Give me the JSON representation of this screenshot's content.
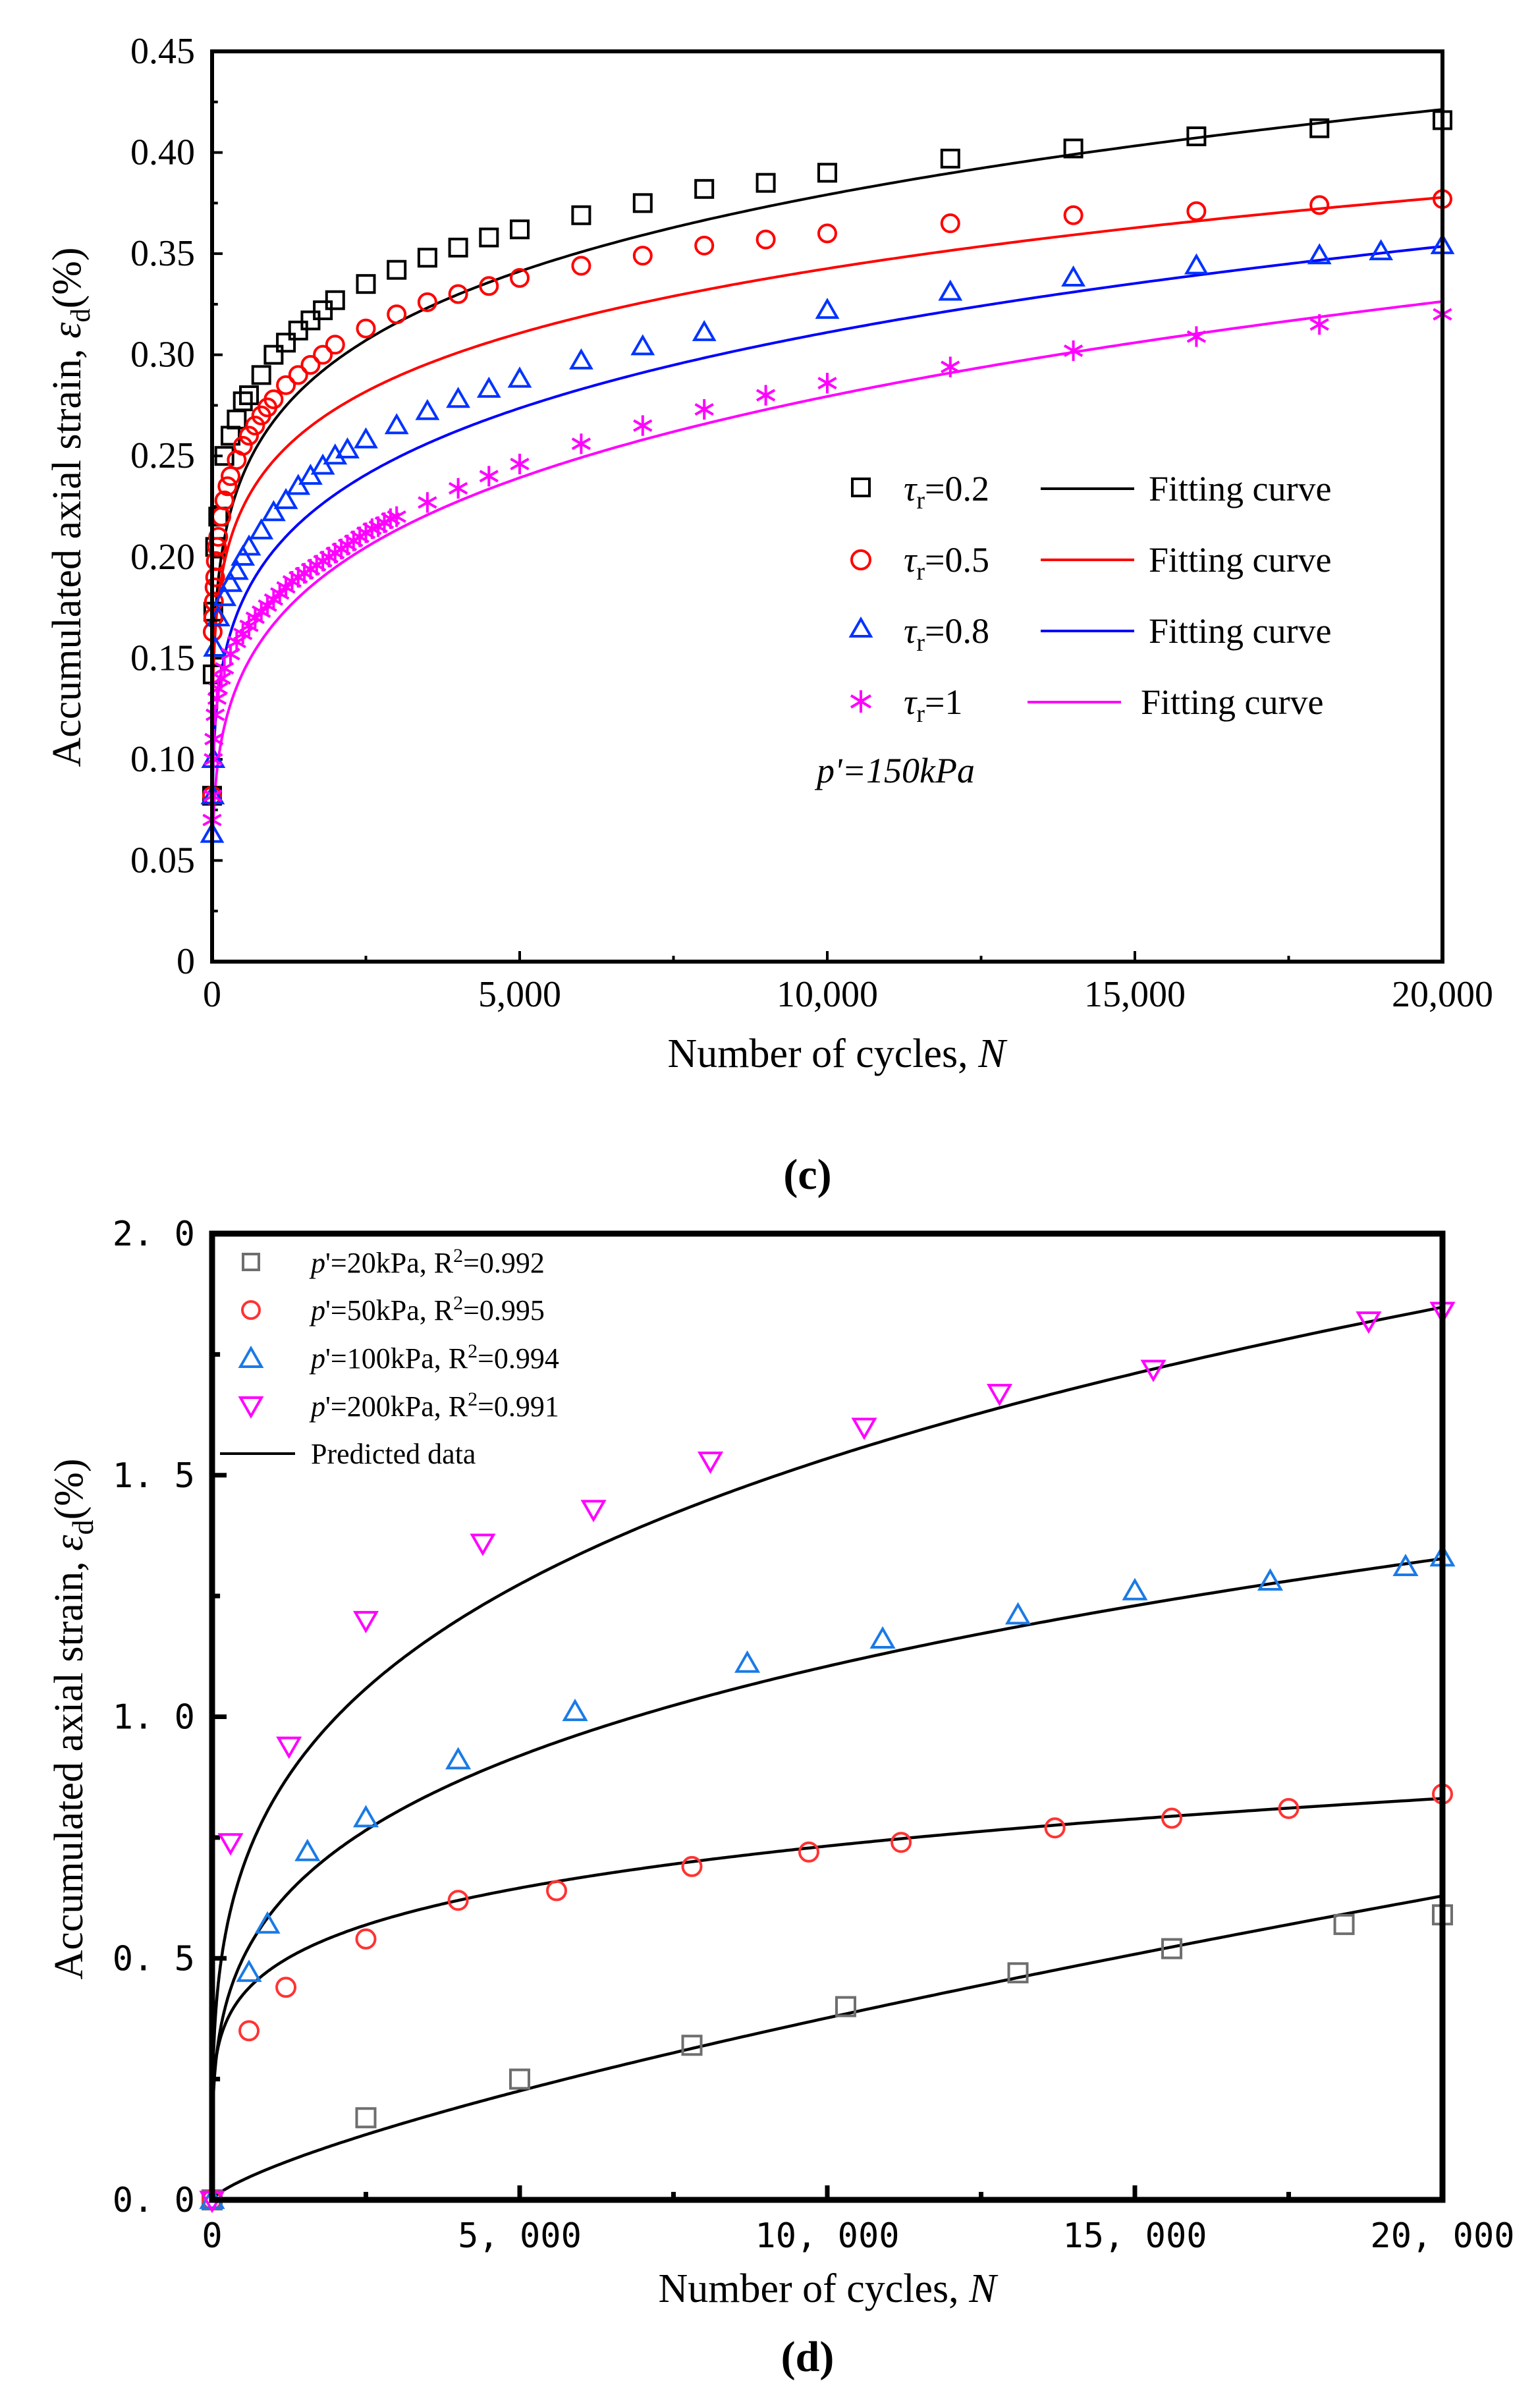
{
  "chart_data": [
    {
      "type": "scatter",
      "panel_label": "(c)",
      "xlabel_text": "Number of cycles, ",
      "xlabel_var": "N",
      "ylabel_text": "Accumulated axial strain, ",
      "ylabel_sym": "ε",
      "ylabel_sub": "d",
      "ylabel_unit": "(%)",
      "xlim": [
        0,
        20000
      ],
      "ylim": [
        0,
        0.45
      ],
      "xticks": [
        0,
        5000,
        10000,
        15000,
        20000
      ],
      "xtick_labels": [
        "0",
        "5,000",
        "10,000",
        "15,000",
        "20,000"
      ],
      "yticks": [
        0,
        0.05,
        0.1,
        0.15,
        0.2,
        0.25,
        0.3,
        0.35,
        0.4,
        0.45
      ],
      "ytick_labels": [
        "0",
        "0.05",
        "0.10",
        "0.15",
        "0.20",
        "0.25",
        "0.30",
        "0.35",
        "0.40",
        "0.45"
      ],
      "legend_position": "center-right",
      "annotation": "p'=150kPa",
      "series": [
        {
          "name": "τr=0.2",
          "tau_sym": "τ",
          "tau_sub": "r",
          "tau_val": "=0.2",
          "marker": "square",
          "color": "#000000",
          "fit_label": "Fitting curve",
          "fit_color": "#000000",
          "x": [
            0,
            10,
            20,
            50,
            100,
            200,
            300,
            400,
            500,
            600,
            800,
            1000,
            1200,
            1400,
            1600,
            1800,
            2000,
            2500,
            3000,
            3500,
            4000,
            4500,
            5000,
            6000,
            7000,
            8000,
            9000,
            10000,
            12000,
            14000,
            16000,
            18000,
            20000
          ],
          "y": [
            0.082,
            0.142,
            0.173,
            0.205,
            0.22,
            0.25,
            0.26,
            0.268,
            0.277,
            0.28,
            0.29,
            0.3,
            0.306,
            0.312,
            0.317,
            0.322,
            0.327,
            0.335,
            0.342,
            0.348,
            0.353,
            0.358,
            0.362,
            0.369,
            0.375,
            0.382,
            0.385,
            0.39,
            0.397,
            0.402,
            0.408,
            0.412,
            0.416
          ],
          "fit_a": 0.0935,
          "fit_b": 0.152
        },
        {
          "name": "τr=0.5",
          "tau_sym": "τ",
          "tau_sub": "r",
          "tau_val": "=0.5",
          "marker": "circle",
          "color": "#ff0000",
          "fit_label": "Fitting curve",
          "fit_color": "#ff0000",
          "x": [
            0,
            10,
            20,
            30,
            40,
            50,
            60,
            80,
            100,
            150,
            200,
            250,
            300,
            400,
            500,
            600,
            700,
            800,
            900,
            1000,
            1200,
            1400,
            1600,
            1800,
            2000,
            2500,
            3000,
            3500,
            4000,
            4500,
            5000,
            6000,
            7000,
            8000,
            9000,
            10000,
            12000,
            14000,
            16000,
            18000,
            20000
          ],
          "y": [
            0.082,
            0.163,
            0.17,
            0.178,
            0.185,
            0.19,
            0.198,
            0.205,
            0.21,
            0.22,
            0.228,
            0.235,
            0.24,
            0.248,
            0.255,
            0.26,
            0.265,
            0.27,
            0.274,
            0.278,
            0.285,
            0.29,
            0.295,
            0.3,
            0.305,
            0.313,
            0.32,
            0.326,
            0.33,
            0.334,
            0.338,
            0.344,
            0.349,
            0.354,
            0.357,
            0.36,
            0.365,
            0.369,
            0.371,
            0.374,
            0.377
          ],
          "fit_a": 0.0935,
          "fit_b": 0.141
        },
        {
          "name": "τr=0.8",
          "tau_sym": "τ",
          "tau_sub": "r",
          "tau_val": "=0.8",
          "marker": "triangle-up",
          "color": "#0033ff",
          "fit_label": "Fitting curve",
          "fit_color": "#0000ff",
          "x": [
            0,
            10,
            20,
            50,
            100,
            200,
            300,
            400,
            500,
            600,
            800,
            1000,
            1200,
            1400,
            1600,
            1800,
            2000,
            2200,
            2500,
            3000,
            3500,
            4000,
            4500,
            5000,
            6000,
            7000,
            8000,
            10000,
            12000,
            14000,
            16000,
            18000,
            19000,
            20000
          ],
          "y": [
            0.063,
            0.082,
            0.1,
            0.155,
            0.17,
            0.18,
            0.187,
            0.193,
            0.2,
            0.205,
            0.213,
            0.222,
            0.228,
            0.235,
            0.24,
            0.245,
            0.25,
            0.253,
            0.258,
            0.265,
            0.272,
            0.278,
            0.283,
            0.288,
            0.297,
            0.304,
            0.311,
            0.322,
            0.331,
            0.338,
            0.344,
            0.349,
            0.351,
            0.354
          ],
          "fit_a": 0.0566,
          "fit_b": 0.185
        },
        {
          "name": "τr=1",
          "tau_sym": "τ",
          "tau_sub": "r",
          "tau_val": "=1",
          "marker": "asterisk",
          "color": "#ff00ff",
          "fit_label": "Fitting curve",
          "fit_color": "#ff00ff",
          "x": [
            0,
            10,
            20,
            30,
            50,
            80,
            100,
            150,
            200,
            300,
            400,
            500,
            600,
            700,
            800,
            900,
            1000,
            1100,
            1200,
            1300,
            1400,
            1500,
            1600,
            1700,
            1800,
            1900,
            2000,
            2100,
            2200,
            2300,
            2400,
            2500,
            2600,
            2700,
            2800,
            2900,
            3000,
            3500,
            4000,
            4500,
            5000,
            6000,
            7000,
            8000,
            9000,
            10000,
            12000,
            14000,
            16000,
            18000,
            20000
          ],
          "y": [
            0.07,
            0.082,
            0.1,
            0.11,
            0.122,
            0.13,
            0.135,
            0.14,
            0.145,
            0.152,
            0.158,
            0.162,
            0.166,
            0.17,
            0.173,
            0.176,
            0.179,
            0.182,
            0.185,
            0.188,
            0.19,
            0.192,
            0.194,
            0.196,
            0.198,
            0.2,
            0.202,
            0.204,
            0.206,
            0.208,
            0.21,
            0.212,
            0.214,
            0.215,
            0.217,
            0.219,
            0.22,
            0.227,
            0.234,
            0.24,
            0.246,
            0.256,
            0.265,
            0.273,
            0.28,
            0.286,
            0.294,
            0.302,
            0.309,
            0.315,
            0.32
          ],
          "fit_a": 0.0355,
          "fit_b": 0.224
        }
      ]
    },
    {
      "type": "scatter",
      "panel_label": "(d)",
      "xlabel_text": "Number of cycles, ",
      "xlabel_var": "N",
      "ylabel_text": "Accumulated axial strain, ",
      "ylabel_sym": "ε",
      "ylabel_sub": "d",
      "ylabel_unit": "(%)",
      "xlim": [
        0,
        20000
      ],
      "ylim": [
        0,
        2.0
      ],
      "xticks": [
        0,
        5000,
        10000,
        15000,
        20000
      ],
      "xtick_labels": [
        "0",
        "5, 000",
        "10, 000",
        "15, 000",
        "20, 000"
      ],
      "yticks": [
        0,
        0.5,
        1.0,
        1.5,
        2.0
      ],
      "ytick_labels": [
        "0. 0",
        "0. 5",
        "1. 0",
        "1. 5",
        "2. 0"
      ],
      "legend_position": "top-left",
      "fit_label": "Predicted data",
      "series": [
        {
          "name": "p'=20kPa, R2=0.992",
          "p_sym": "p",
          "p_rest": "'=20kPa, R",
          "r_sup": "2",
          "r_val": "=0.992",
          "marker": "square",
          "color": "#6e6e6e",
          "x": [
            0,
            2500,
            5000,
            7800,
            10300,
            13100,
            15600,
            18400,
            20000
          ],
          "y": [
            0.0,
            0.17,
            0.25,
            0.32,
            0.4,
            0.47,
            0.52,
            0.57,
            0.59
          ],
          "fit_a": 0.000413,
          "fit_b": 0.74
        },
        {
          "name": "p'=50kPa, R2=0.995",
          "p_sym": "p",
          "p_rest": "'=50kPa, R",
          "r_sup": "2",
          "r_val": "=0.995",
          "marker": "circle",
          "color": "#ff3333",
          "x": [
            0,
            600,
            1200,
            2500,
            4000,
            5600,
            7800,
            9700,
            11200,
            13700,
            15600,
            17500,
            20000
          ],
          "y": [
            0.0,
            0.35,
            0.44,
            0.54,
            0.62,
            0.64,
            0.69,
            0.72,
            0.74,
            0.77,
            0.79,
            0.81,
            0.84
          ],
          "fit_a": 0.137,
          "fit_b": 0.182
        },
        {
          "name": "p'=100kPa, R2=0.994",
          "p_sym": "p",
          "p_rest": "'=100kPa, R",
          "r_sup": "2",
          "r_val": "=0.994",
          "marker": "triangle-up",
          "color": "#1a7ae6",
          "x": [
            0,
            600,
            900,
            1550,
            2500,
            4000,
            5900,
            8700,
            10900,
            13100,
            15000,
            17200,
            19400,
            20000
          ],
          "y": [
            0.0,
            0.47,
            0.57,
            0.72,
            0.79,
            0.91,
            1.01,
            1.11,
            1.16,
            1.21,
            1.26,
            1.28,
            1.31,
            1.33
          ],
          "fit_a": 0.0962,
          "fit_b": 0.265
        },
        {
          "name": "p'=200kPa, R2=0.991",
          "p_sym": "p",
          "p_rest": "'=200kPa, R",
          "r_sup": "2",
          "r_val": "=0.991",
          "marker": "triangle-down",
          "color": "#ff00ff",
          "x": [
            0,
            300,
            1250,
            2500,
            4400,
            6200,
            8100,
            10600,
            12800,
            15300,
            18800,
            20000
          ],
          "y": [
            0.0,
            0.74,
            0.94,
            1.2,
            1.36,
            1.43,
            1.53,
            1.6,
            1.67,
            1.72,
            1.82,
            1.84
          ],
          "fit_a": 0.13,
          "fit_b": 0.268
        }
      ]
    }
  ]
}
